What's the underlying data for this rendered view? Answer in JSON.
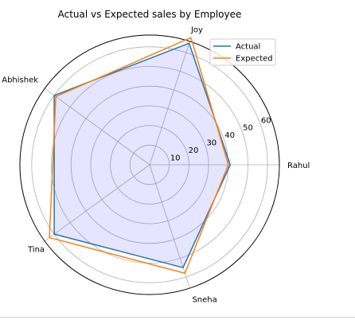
{
  "chart_data": {
    "type": "radar",
    "title": "Actual vs Expected sales by Employee",
    "categories": [
      "Rahul",
      "Joy",
      "Abhishek",
      "Tina",
      "Sneha"
    ],
    "series": [
      {
        "name": "Actual",
        "values": [
          41,
          65,
          60,
          60,
          55
        ],
        "color": "#1f77b4"
      },
      {
        "name": "Expected",
        "values": [
          40,
          68,
          59,
          63,
          58
        ],
        "color": "#ff7f0e"
      }
    ],
    "fill_color": "#0000ff",
    "rticks": [
      10,
      20,
      30,
      40,
      50,
      60
    ],
    "rlim": [
      0,
      66
    ],
    "legend_position": "top-right"
  }
}
